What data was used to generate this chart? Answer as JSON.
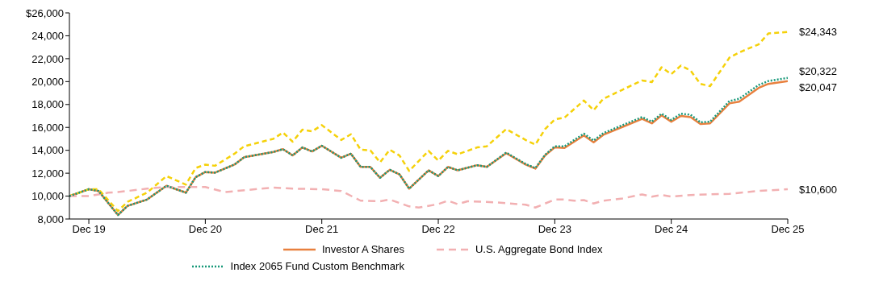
{
  "chart_data": {
    "type": "line",
    "xlim": [
      "2019-10",
      "2025-12"
    ],
    "xticks": [
      {
        "value": "2019-12",
        "label": "Dec 19"
      },
      {
        "value": "2020-12",
        "label": "Dec 20"
      },
      {
        "value": "2021-12",
        "label": "Dec 21"
      },
      {
        "value": "2022-12",
        "label": "Dec 22"
      },
      {
        "value": "2023-12",
        "label": "Dec 23"
      },
      {
        "value": "2024-12",
        "label": "Dec 24"
      },
      {
        "value": "2025-12",
        "label": "Dec 25"
      }
    ],
    "ylim": [
      8000,
      26000
    ],
    "yticks": [
      {
        "value": 8000,
        "label": "8,000"
      },
      {
        "value": 10000,
        "label": "10,000"
      },
      {
        "value": 12000,
        "label": "12,000"
      },
      {
        "value": 14000,
        "label": "14,000"
      },
      {
        "value": 16000,
        "label": "16,000"
      },
      {
        "value": 18000,
        "label": "18,000"
      },
      {
        "value": 20000,
        "label": "20,000"
      },
      {
        "value": 22000,
        "label": "22,000"
      },
      {
        "value": 24000,
        "label": "24,000"
      },
      {
        "value": 26000,
        "label": "$26,000"
      }
    ],
    "grid": false,
    "legend": "bottom",
    "marker": "none",
    "series": [
      {
        "name": "Investor A Shares",
        "color": "#e8803e",
        "line_style": "solid",
        "x": [
          "2019-10",
          "2019-12",
          "2020-01",
          "2020-03",
          "2020-04",
          "2020-06",
          "2020-08",
          "2020-10",
          "2020-11",
          "2020-12",
          "2021-01",
          "2021-03",
          "2021-04",
          "2021-07",
          "2021-08",
          "2021-09",
          "2021-10",
          "2021-11",
          "2021-12",
          "2022-02",
          "2022-03",
          "2022-04",
          "2022-05",
          "2022-06",
          "2022-07",
          "2022-08",
          "2022-09",
          "2022-11",
          "2022-12",
          "2023-01",
          "2023-02",
          "2023-04",
          "2023-05",
          "2023-07",
          "2023-09",
          "2023-10",
          "2023-11",
          "2023-12",
          "2024-01",
          "2024-03",
          "2024-04",
          "2024-05",
          "2024-07",
          "2024-09",
          "2024-10",
          "2024-11",
          "2024-12",
          "2025-01",
          "2025-02",
          "2025-03",
          "2025-04",
          "2025-06",
          "2025-07",
          "2025-09",
          "2025-10",
          "2025-12"
        ],
        "values": [
          10000,
          10600,
          10450,
          8350,
          9150,
          9700,
          10900,
          10300,
          11650,
          12100,
          12050,
          12750,
          13400,
          13850,
          14100,
          13550,
          14250,
          13900,
          14400,
          13350,
          13700,
          12550,
          12550,
          11600,
          12300,
          11900,
          10650,
          12250,
          11750,
          12550,
          12250,
          12700,
          12550,
          13750,
          12750,
          12400,
          13550,
          14250,
          14200,
          15300,
          14700,
          15350,
          16050,
          16750,
          16350,
          17050,
          16500,
          17000,
          16900,
          16300,
          16350,
          18100,
          18250,
          19450,
          19800,
          20047
        ]
      },
      {
        "color": "#f5d10a",
        "line_style": "dashed",
        "x": [
          "2019-10",
          "2019-12",
          "2020-01",
          "2020-03",
          "2020-04",
          "2020-06",
          "2020-08",
          "2020-10",
          "2020-11",
          "2020-12",
          "2021-01",
          "2021-03",
          "2021-04",
          "2021-07",
          "2021-08",
          "2021-09",
          "2021-10",
          "2021-11",
          "2021-12",
          "2022-02",
          "2022-03",
          "2022-04",
          "2022-05",
          "2022-06",
          "2022-07",
          "2022-08",
          "2022-09",
          "2022-11",
          "2022-12",
          "2023-01",
          "2023-02",
          "2023-04",
          "2023-05",
          "2023-07",
          "2023-09",
          "2023-10",
          "2023-11",
          "2023-12",
          "2024-01",
          "2024-03",
          "2024-04",
          "2024-05",
          "2024-07",
          "2024-09",
          "2024-10",
          "2024-11",
          "2024-12",
          "2025-01",
          "2025-02",
          "2025-03",
          "2025-04",
          "2025-06",
          "2025-07",
          "2025-09",
          "2025-10",
          "2025-12"
        ],
        "values": [
          10000,
          10600,
          10600,
          8700,
          9500,
          10300,
          11750,
          11000,
          12450,
          12750,
          12650,
          13700,
          14350,
          15000,
          15550,
          14750,
          15800,
          15650,
          16200,
          14900,
          15400,
          14050,
          14000,
          12950,
          14050,
          13550,
          12200,
          13950,
          13100,
          13950,
          13650,
          14250,
          14350,
          15850,
          14900,
          14500,
          15850,
          16700,
          16850,
          18350,
          17500,
          18500,
          19300,
          20100,
          19950,
          21250,
          20650,
          21400,
          20950,
          19800,
          19600,
          22100,
          22550,
          23250,
          24200,
          24343
        ]
      },
      {
        "name": "U.S. Aggregate Bond Index",
        "color": "#f2b0b2",
        "line_style": "dashed",
        "x": [
          "2019-10",
          "2019-12",
          "2020-02",
          "2020-03",
          "2020-06",
          "2020-08",
          "2020-12",
          "2021-02",
          "2021-07",
          "2021-09",
          "2021-12",
          "2022-02",
          "2022-04",
          "2022-06",
          "2022-07",
          "2022-09",
          "2022-10",
          "2022-12",
          "2023-01",
          "2023-02",
          "2023-03",
          "2023-06",
          "2023-09",
          "2023-10",
          "2023-12",
          "2024-01",
          "2024-02",
          "2024-03",
          "2024-04",
          "2024-05",
          "2024-07",
          "2024-09",
          "2024-10",
          "2024-11",
          "2024-12",
          "2025-02",
          "2025-04",
          "2025-06",
          "2025-09",
          "2025-12"
        ],
        "values": [
          10000,
          10000,
          10300,
          10350,
          10650,
          10800,
          10800,
          10350,
          10750,
          10650,
          10600,
          10450,
          9600,
          9550,
          9700,
          9100,
          9000,
          9300,
          9600,
          9300,
          9550,
          9450,
          9250,
          9000,
          9700,
          9700,
          9600,
          9650,
          9350,
          9600,
          9800,
          10150,
          9950,
          10100,
          9950,
          10100,
          10150,
          10200,
          10450,
          10600
        ]
      },
      {
        "name": "Index 2065 Fund Custom Benchmark",
        "color": "#18997a",
        "line_style": "dotted",
        "x": [
          "2019-10",
          "2019-12",
          "2020-01",
          "2020-03",
          "2020-04",
          "2020-06",
          "2020-08",
          "2020-10",
          "2020-11",
          "2020-12",
          "2021-01",
          "2021-03",
          "2021-04",
          "2021-07",
          "2021-08",
          "2021-09",
          "2021-10",
          "2021-11",
          "2021-12",
          "2022-02",
          "2022-03",
          "2022-04",
          "2022-05",
          "2022-06",
          "2022-07",
          "2022-08",
          "2022-09",
          "2022-11",
          "2022-12",
          "2023-01",
          "2023-02",
          "2023-04",
          "2023-05",
          "2023-07",
          "2023-09",
          "2023-10",
          "2023-11",
          "2023-12",
          "2024-01",
          "2024-03",
          "2024-04",
          "2024-05",
          "2024-07",
          "2024-09",
          "2024-10",
          "2024-11",
          "2024-12",
          "2025-01",
          "2025-02",
          "2025-03",
          "2025-04",
          "2025-06",
          "2025-07",
          "2025-09",
          "2025-10",
          "2025-12"
        ],
        "values": [
          10000,
          10600,
          10450,
          8350,
          9150,
          9700,
          10900,
          10300,
          11650,
          12100,
          12050,
          12750,
          13400,
          13850,
          14100,
          13550,
          14250,
          13900,
          14400,
          13350,
          13700,
          12550,
          12550,
          11600,
          12300,
          11900,
          10650,
          12250,
          11750,
          12550,
          12250,
          12700,
          12550,
          13800,
          12800,
          12450,
          13600,
          14350,
          14350,
          15450,
          14850,
          15500,
          16200,
          16900,
          16500,
          17200,
          16650,
          17200,
          17100,
          16450,
          16500,
          18300,
          18500,
          19700,
          20050,
          20322
        ]
      }
    ],
    "annotations": [
      {
        "text": "$24,343",
        "x": "2025-12",
        "y": 24343
      },
      {
        "text": "$20,322",
        "x": "2025-12",
        "y": 20322
      },
      {
        "text": "$20,047",
        "x": "2025-12",
        "y": 20047
      },
      {
        "text": "$10,600",
        "x": "2025-12",
        "y": 10600
      }
    ]
  }
}
